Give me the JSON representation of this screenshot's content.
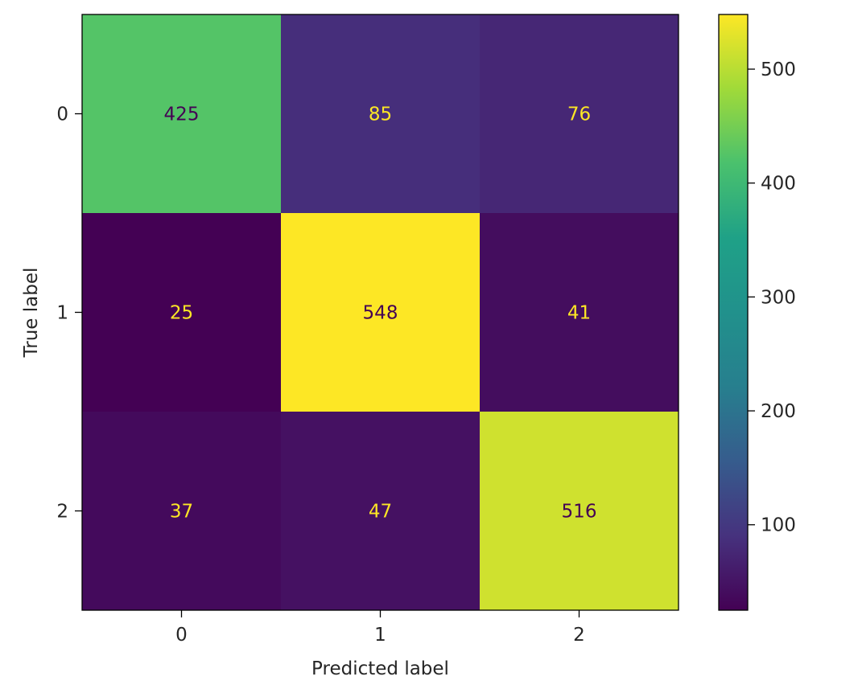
{
  "chart_data": {
    "type": "heatmap",
    "title": "",
    "xlabel": "Predicted label",
    "ylabel": "True label",
    "x_categories": [
      "0",
      "1",
      "2"
    ],
    "y_categories": [
      "0",
      "1",
      "2"
    ],
    "values": [
      [
        425,
        85,
        76
      ],
      [
        25,
        548,
        41
      ],
      [
        37,
        47,
        516
      ]
    ],
    "colormap": "viridis",
    "color_range": [
      25,
      548
    ],
    "colorbar": {
      "ticks": [
        "100",
        "200",
        "300",
        "400",
        "500"
      ],
      "tick_values": [
        100,
        200,
        300,
        400,
        500
      ]
    },
    "text_colors": {
      "on_dark": "#fde725",
      "on_light": "#440154"
    },
    "grid": false
  }
}
